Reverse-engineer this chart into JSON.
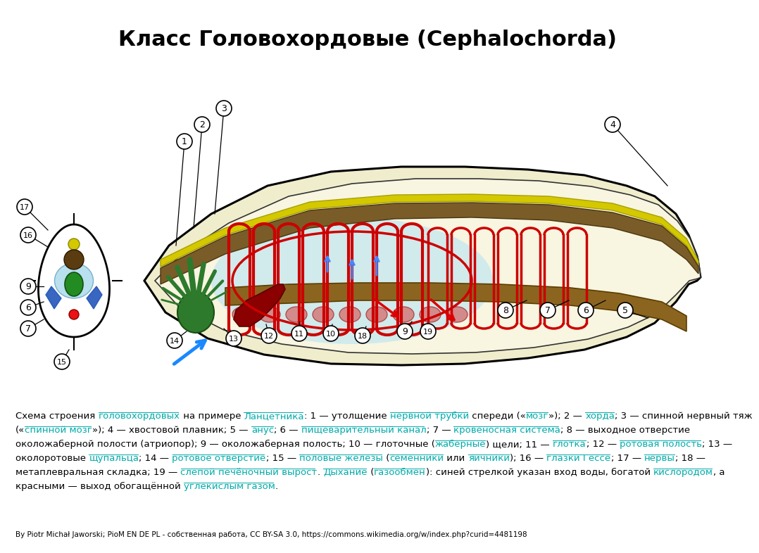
{
  "title": "Класс Головохордовые (Cephalochorda)",
  "title_fontsize": 22,
  "title_fontweight": "bold",
  "background_color": "#ffffff",
  "desc_line1": "Схема строения ",
  "desc_link1": "головохордовых",
  "desc_mid1": " на примере ",
  "desc_link2": "Ланцетника",
  "desc_mid2": ": 1 — утолщение ",
  "desc_link3": "нервной трубки",
  "desc_mid3": " спереди («",
  "desc_link4": "мозг",
  "desc_mid4": "»); 2 — ",
  "desc_link5": "хорда",
  "desc_mid5": "; 3 — спинной нервный тяж",
  "desc_line2": "(«",
  "desc_link6": "спинной мозг",
  "desc_mid6": "»); 4 — хвостовой плавник; 5 — ",
  "desc_link7": "анус",
  "desc_mid7": "; 6 — ",
  "desc_link8": "пищеварительный канал",
  "desc_mid8": "; 7 — ",
  "desc_link9": "кровеносная система",
  "desc_mid9": "; 8 — выходное отверстие",
  "desc_line3": "околожаберной полости (атриопор); 9 — околожаберная полость; 10 — глоточные (",
  "desc_link10": "жаберные",
  "desc_mid10": ") щели; 11 — ",
  "desc_link11": "глотка",
  "desc_mid11": "; 12 — ",
  "desc_link12": "ротовая полость",
  "desc_mid12": "; 13 —",
  "desc_line4": "околоротовые ",
  "desc_link13": "щупальца",
  "desc_mid13": "; 14 — ",
  "desc_link14": "ротовое отверстие",
  "desc_mid14": "; 15 — ",
  "desc_link15": "половые железы",
  "desc_mid15": " (",
  "desc_link16": "семенники",
  "desc_mid16": " или ",
  "desc_link17": "яичники",
  "desc_mid17": "); 16 — ",
  "desc_link18": "глазки Гессе",
  "desc_mid18": "; 17 — ",
  "desc_link19": "нервы",
  "desc_mid19": "; 18 —",
  "desc_line5": "метаплевральная складка; 19 — ",
  "desc_link20": "слепой печёночный вырост",
  "desc_mid20": ". ",
  "desc_link21": "Дыхание",
  "desc_mid21": " (",
  "desc_link22": "газообмен",
  "desc_mid22": "): синей стрелкой указан вход воды, богатой ",
  "desc_link23": "кислородом",
  "desc_mid23": ", а",
  "desc_line6": "красными — выход обогащённой ",
  "desc_link24": "углекислым газом",
  "desc_mid24": ".",
  "credit_text": "By Piotr Michał Jaworski; PioM EN DE PL - собственная работа, CC BY-SA 3.0, https://commons.wikimedia.org/w/index.php?curid=4481198",
  "link_color": "#00aaaa",
  "text_color": "#000000",
  "desc_fontsize": 9.5,
  "credit_fontsize": 7.5
}
